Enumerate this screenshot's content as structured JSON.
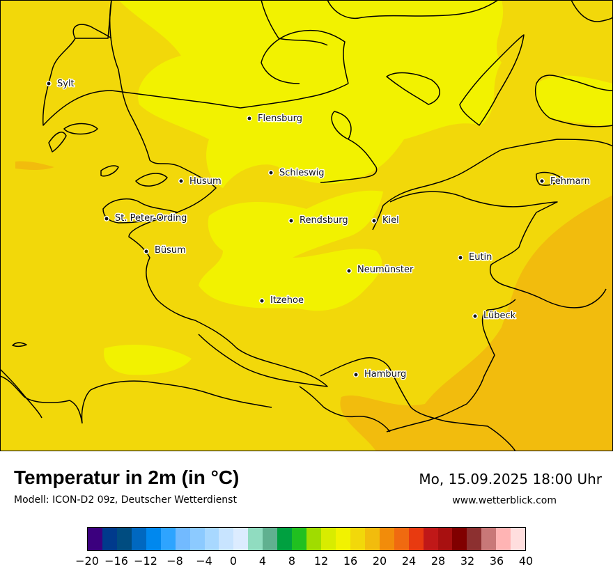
{
  "map": {
    "title": "Temperatur in 2m (in °C)",
    "subtitle": "Modell: ICON-D2 09z, Deutscher Wetterdienst",
    "datetime": "Mo, 15.09.2025 18:00 Uhr",
    "website": "www.wetterblick.com",
    "region": "Schleswig-Holstein",
    "cities": [
      {
        "name": "Sylt"
      },
      {
        "name": "Flensburg"
      },
      {
        "name": "Schleswig"
      },
      {
        "name": "Husum"
      },
      {
        "name": "Fehmarn"
      },
      {
        "name": "St. Peter-Ording"
      },
      {
        "name": "Rendsburg"
      },
      {
        "name": "Kiel"
      },
      {
        "name": "Büsum"
      },
      {
        "name": "Eutin"
      },
      {
        "name": "Neumünster"
      },
      {
        "name": "Itzehoe"
      },
      {
        "name": "Lübeck"
      },
      {
        "name": "Hamburg"
      }
    ],
    "temperature_zones": [
      {
        "label": "16–18",
        "color": "#f2f200"
      },
      {
        "label": "18–20",
        "color": "#f2d80a"
      },
      {
        "label": "20–22",
        "color": "#f2bc0d"
      }
    ],
    "colors": {
      "coastline": "#000000"
    }
  },
  "legend": {
    "colors": [
      "#3b007e",
      "#003a8c",
      "#004c80",
      "#0068c0",
      "#0088ee",
      "#2ea4ff",
      "#72baff",
      "#8ccaff",
      "#a8d8ff",
      "#c8e4ff",
      "#dcecff",
      "#90dcc0",
      "#60b090",
      "#00a040",
      "#20c020",
      "#a0dc00",
      "#d8ec00",
      "#f2f200",
      "#f2d80a",
      "#f2bc0d",
      "#f28c0a",
      "#f06a10",
      "#e83a10",
      "#c01818",
      "#a81010",
      "#800000",
      "#8c3030",
      "#c87878",
      "#ffb4b4",
      "#ffdede"
    ],
    "ticks": [
      "−20",
      "−16",
      "−12",
      "−8",
      "−4",
      "0",
      "4",
      "8",
      "12",
      "16",
      "20",
      "24",
      "28",
      "32",
      "36",
      "40"
    ]
  }
}
